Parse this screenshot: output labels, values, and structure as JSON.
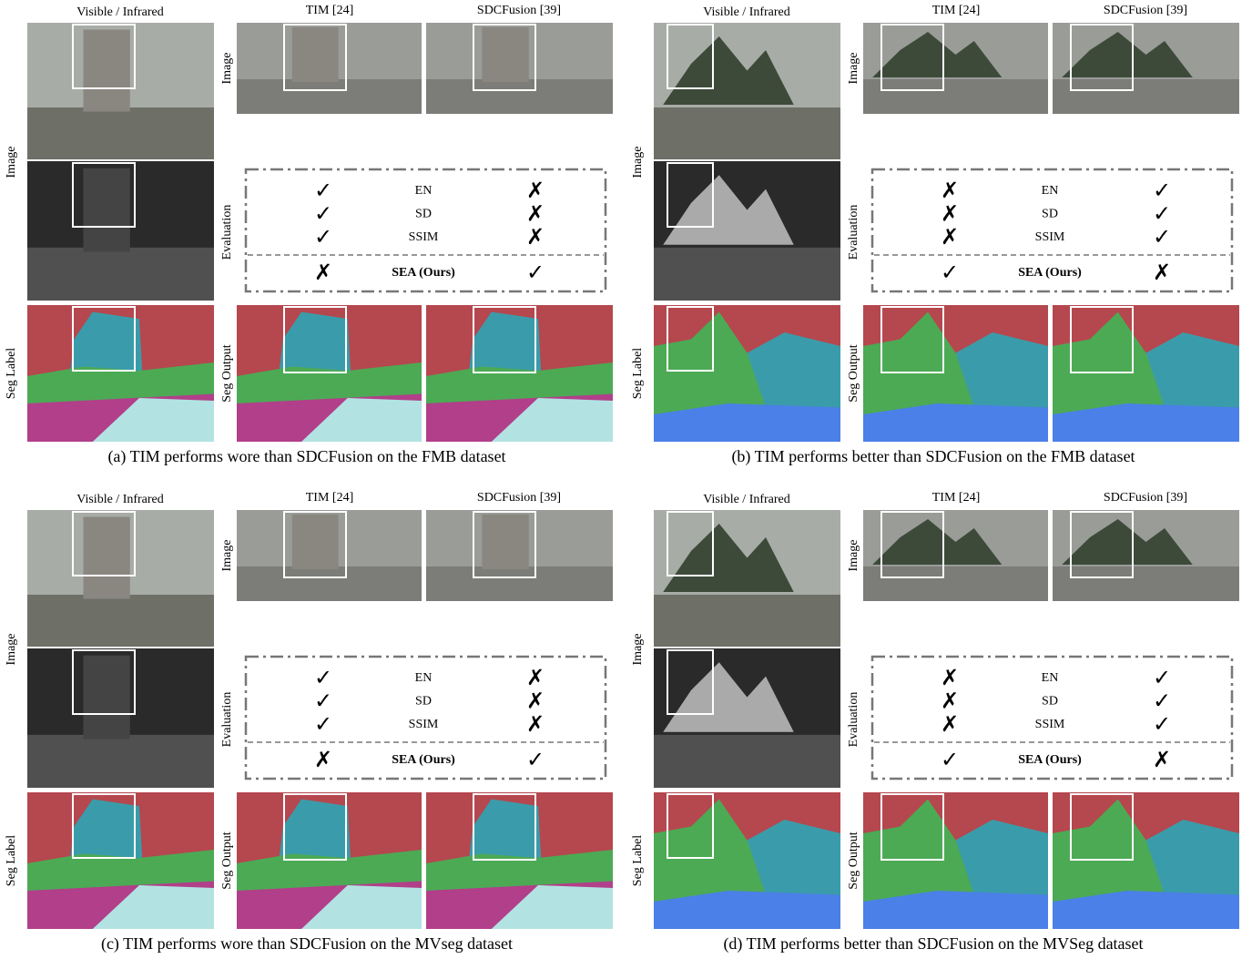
{
  "panels": [
    {
      "column_headers": [
        "Visible / Infrared",
        "TIM [24]",
        "SDCFusion [39]"
      ],
      "row_labels": {
        "image_left": "Image",
        "image_right": "Image",
        "evaluation": "Evaluation",
        "seg_label": "Seg Label",
        "seg_output": "Seg Output"
      },
      "evaluation": [
        {
          "tim": "✓",
          "metric": "EN",
          "sdcfusion": "✗"
        },
        {
          "tim": "✓",
          "metric": "SD",
          "sdcfusion": "✗"
        },
        {
          "tim": "✓",
          "metric": "SSIM",
          "sdcfusion": "✗"
        },
        {
          "tim": "✗",
          "metric": "SEA (Ours)",
          "sdcfusion": "✓"
        }
      ],
      "caption": "(a) TIM performs wore than SDCFusion on the FMB dataset"
    },
    {
      "column_headers": [
        "Visible / Infrared",
        "TIM [24]",
        "SDCFusion [39]"
      ],
      "row_labels": {
        "image_left": "Image",
        "image_right": "Image",
        "evaluation": "Evaluation",
        "seg_label": "Seg Label",
        "seg_output": "Seg Output"
      },
      "evaluation": [
        {
          "tim": "✗",
          "metric": "EN",
          "sdcfusion": "✓"
        },
        {
          "tim": "✗",
          "metric": "SD",
          "sdcfusion": "✓"
        },
        {
          "tim": "✗",
          "metric": "SSIM",
          "sdcfusion": "✓"
        },
        {
          "tim": "✓",
          "metric": "SEA (Ours)",
          "sdcfusion": "✗"
        }
      ],
      "caption": "(b) TIM performs better than SDCFusion on the FMB dataset"
    },
    {
      "column_headers": [
        "Visible / Infrared",
        "TIM [24]",
        "SDCFusion [39]"
      ],
      "row_labels": {
        "image_left": "Image",
        "image_right": "Image",
        "evaluation": "Evaluation",
        "seg_label": "Seg Label",
        "seg_output": "Seg Output"
      },
      "evaluation": [
        {
          "tim": "✓",
          "metric": "EN",
          "sdcfusion": "✗"
        },
        {
          "tim": "✓",
          "metric": "SD",
          "sdcfusion": "✗"
        },
        {
          "tim": "✓",
          "metric": "SSIM",
          "sdcfusion": "✗"
        },
        {
          "tim": "✗",
          "metric": "SEA (Ours)",
          "sdcfusion": "✓"
        }
      ],
      "caption": "(c) TIM performs wore than SDCFusion on the MVseg dataset"
    },
    {
      "column_headers": [
        "Visible / Infrared",
        "TIM [24]",
        "SDCFusion [39]"
      ],
      "row_labels": {
        "image_left": "Image",
        "image_right": "Image",
        "evaluation": "Evaluation",
        "seg_label": "Seg Label",
        "seg_output": "Seg Output"
      },
      "evaluation": [
        {
          "tim": "✗",
          "metric": "EN",
          "sdcfusion": "✓"
        },
        {
          "tim": "✗",
          "metric": "SD",
          "sdcfusion": "✓"
        },
        {
          "tim": "✗",
          "metric": "SSIM",
          "sdcfusion": "✓"
        },
        {
          "tim": "✓",
          "metric": "SEA (Ours)",
          "sdcfusion": "✗"
        }
      ],
      "caption": "(d) TIM performs better than SDCFusion on the MVSeg dataset"
    }
  ]
}
